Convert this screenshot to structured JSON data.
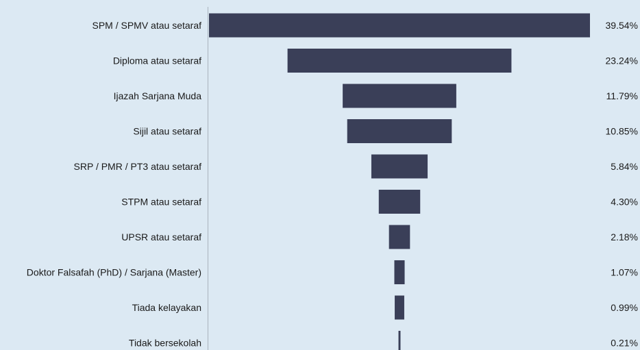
{
  "chart_data": {
    "type": "bar",
    "orientation": "horizontal",
    "style": "funnel",
    "title": "",
    "xlabel": "",
    "ylabel": "",
    "grid": false,
    "bar_color": "#3a3f58",
    "background_color": "#dce9f3",
    "categories": [
      "SPM / SPMV atau setaraf",
      "Diploma atau setaraf",
      "Ijazah Sarjana Muda",
      "Sijil atau setaraf",
      "SRP / PMR / PT3 atau setaraf",
      "STPM atau setaraf",
      "UPSR atau setaraf",
      "Doktor Falsafah (PhD) / Sarjana (Master)",
      "Tiada kelayakan",
      "Tidak bersekolah"
    ],
    "values": [
      39.54,
      23.24,
      11.79,
      10.85,
      5.84,
      4.3,
      2.18,
      1.07,
      0.99,
      0.21
    ],
    "value_labels": [
      "39.54%",
      "23.24%",
      "11.79%",
      "10.85%",
      "5.84%",
      "4.30%",
      "2.18%",
      "1.07%",
      "0.99%",
      "0.21%"
    ]
  }
}
